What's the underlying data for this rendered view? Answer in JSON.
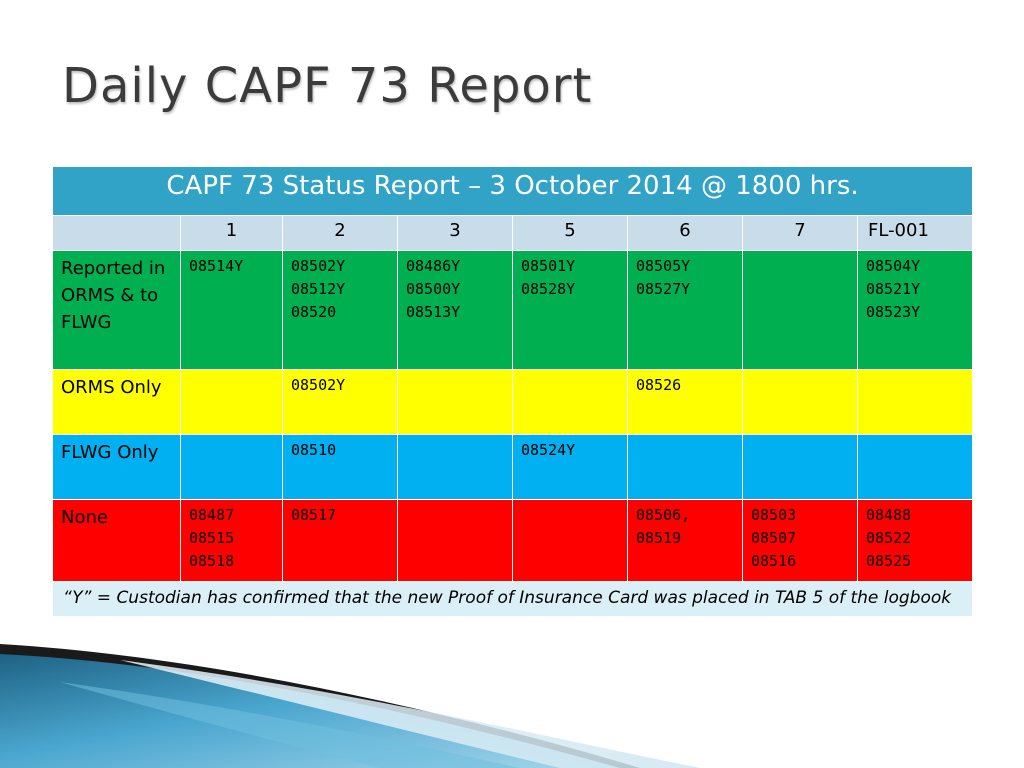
{
  "slide": {
    "title": "Daily CAPF 73 Report"
  },
  "table": {
    "header": "CAPF 73 Status Report – 3 October 2014 @ 1800 hrs.",
    "columns": [
      "",
      "1",
      "2",
      "3",
      "5",
      "6",
      "7",
      "FL-001"
    ],
    "rows": [
      {
        "label": "Reported in ORMS & to FLWG",
        "color": "#00b050",
        "cells": [
          "08514Y",
          "08502Y\n08512Y\n08520",
          "08486Y\n08500Y\n08513Y",
          "08501Y\n08528Y",
          "08505Y\n08527Y",
          "",
          "08504Y\n08521Y\n08523Y"
        ]
      },
      {
        "label": "ORMS Only",
        "color": "#ffff00",
        "cells": [
          "",
          "08502Y",
          "",
          "",
          "08526",
          "",
          ""
        ]
      },
      {
        "label": "FLWG Only",
        "color": "#00b0f0",
        "cells": [
          "",
          "08510",
          "",
          "08524Y",
          "",
          "",
          ""
        ]
      },
      {
        "label": "None",
        "color": "#ff0000",
        "cells": [
          "08487\n08515\n08518",
          "08517",
          "",
          "",
          "08506,\n08519",
          "08503\n08507\n08516",
          "08488\n08522\n08525"
        ]
      }
    ],
    "note": "“Y” = Custodian has confirmed that the new Proof of Insurance Card was placed in TAB 5 of the logbook"
  },
  "theme": {
    "header_color": "#31a3c6",
    "column_row_color": "#c8dce9",
    "note_color": "#dbeff7",
    "title_color": "#3b3b3b"
  }
}
